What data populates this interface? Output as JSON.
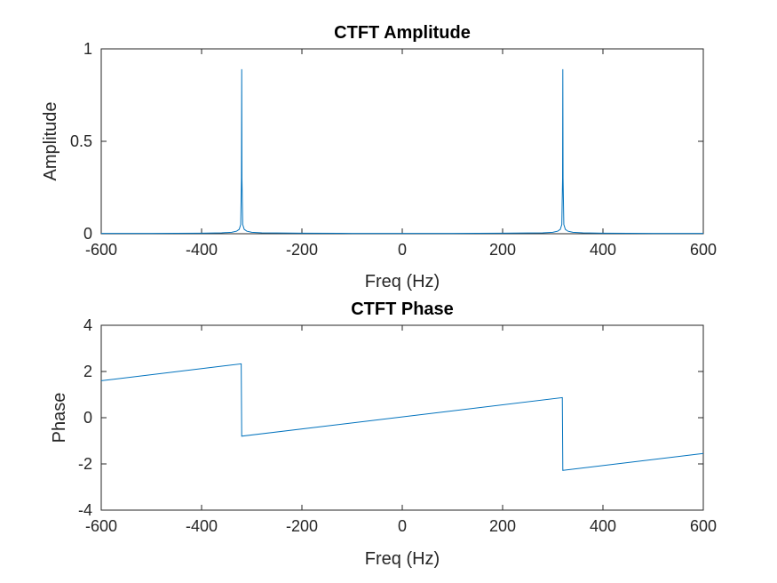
{
  "chart_data": [
    {
      "type": "line",
      "title": "CTFT Amplitude",
      "xlabel": "Freq (Hz)",
      "ylabel": "Amplitude",
      "xlim": [
        -600,
        600
      ],
      "ylim": [
        0,
        1
      ],
      "xticks": [
        -600,
        -400,
        -200,
        0,
        200,
        400,
        600
      ],
      "yticks": [
        0,
        0.5,
        1
      ],
      "xtick_labels": [
        "-600",
        "-400",
        "-200",
        "0",
        "200",
        "400",
        "600"
      ],
      "ytick_labels": [
        "0",
        "0.5",
        "1"
      ],
      "grid": false,
      "series": [
        {
          "color": "#0072BD",
          "x": [
            -600,
            -500,
            -400,
            -360,
            -340,
            -330,
            -325,
            -322,
            -320.5,
            -320,
            -319.5,
            -318,
            -315,
            -310,
            -300,
            -280,
            -250,
            -200,
            -100,
            0,
            100,
            200,
            250,
            280,
            300,
            310,
            315,
            318,
            319.5,
            320,
            320.5,
            322,
            325,
            330,
            340,
            360,
            400,
            500,
            600
          ],
          "y": [
            0.002,
            0.002,
            0.003,
            0.005,
            0.008,
            0.014,
            0.024,
            0.05,
            0.3,
            0.89,
            0.3,
            0.05,
            0.024,
            0.014,
            0.008,
            0.005,
            0.004,
            0.003,
            0.002,
            0.002,
            0.002,
            0.003,
            0.004,
            0.005,
            0.008,
            0.014,
            0.024,
            0.05,
            0.3,
            0.89,
            0.3,
            0.05,
            0.024,
            0.014,
            0.008,
            0.005,
            0.003,
            0.002,
            0.002
          ]
        }
      ]
    },
    {
      "type": "line",
      "title": "CTFT Phase",
      "xlabel": "Freq (Hz)",
      "ylabel": "Phase",
      "xlim": [
        -600,
        600
      ],
      "ylim": [
        -4,
        4
      ],
      "xticks": [
        -600,
        -400,
        -200,
        0,
        200,
        400,
        600
      ],
      "yticks": [
        -4,
        -2,
        0,
        2,
        4
      ],
      "xtick_labels": [
        "-600",
        "-400",
        "-200",
        "0",
        "200",
        "400",
        "600"
      ],
      "ytick_labels": [
        "-4",
        "-2",
        "0",
        "2",
        "4"
      ],
      "grid": false,
      "series": [
        {
          "color": "#0072BD",
          "x": [
            -600,
            -321,
            -320,
            319,
            320,
            600
          ],
          "y": [
            1.6,
            2.33,
            -0.8,
            0.87,
            -2.28,
            -1.55
          ]
        }
      ]
    }
  ]
}
